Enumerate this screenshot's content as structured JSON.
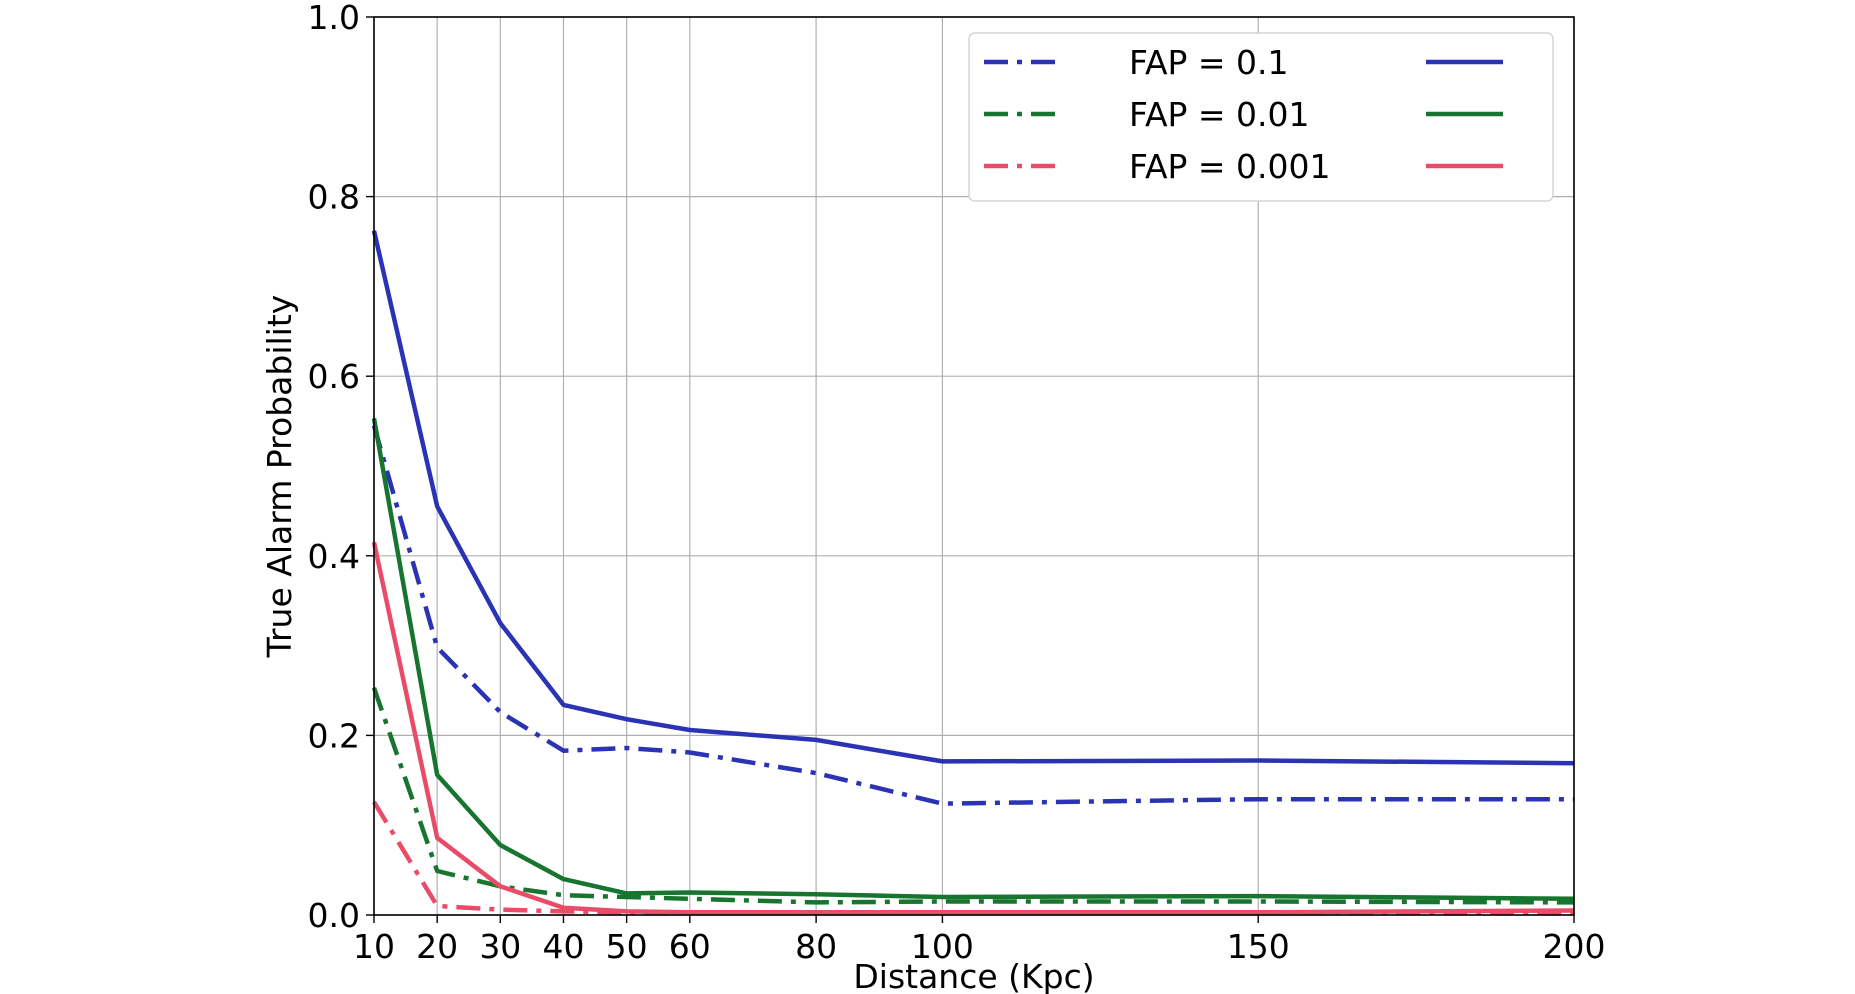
{
  "chart_data": {
    "type": "line",
    "xlabel": "Distance (Kpc)",
    "ylabel": "True Alarm Probability",
    "xlim": [
      10,
      200
    ],
    "ylim": [
      0.0,
      1.0
    ],
    "x_ticks": [
      10,
      20,
      30,
      40,
      50,
      60,
      80,
      100,
      150,
      200
    ],
    "y_ticks": [
      0.0,
      0.2,
      0.4,
      0.6,
      0.8,
      1.0
    ],
    "y_tick_labels": [
      "0.0",
      "0.2",
      "0.4",
      "0.6",
      "0.8",
      "1.0"
    ],
    "grid": true,
    "legend_position": "top-right",
    "x": [
      10,
      20,
      30,
      40,
      50,
      60,
      80,
      100,
      150,
      200
    ],
    "legend": [
      {
        "label": "FAP = 0.1",
        "color": "#2b33b5"
      },
      {
        "label": "FAP = 0.01",
        "color": "#17752f"
      },
      {
        "label": "FAP = 0.001",
        "color": "#e84c68"
      }
    ],
    "series": [
      {
        "color": "#2b33b5",
        "style": "dashdot",
        "values": [
          0.545,
          0.298,
          0.226,
          0.183,
          0.186,
          0.181,
          0.158,
          0.124,
          0.129,
          0.129
        ]
      },
      {
        "color": "#2b33b5",
        "style": "solid",
        "values": [
          0.762,
          0.455,
          0.325,
          0.234,
          0.218,
          0.206,
          0.195,
          0.171,
          0.172,
          0.169
        ]
      },
      {
        "color": "#17752f",
        "style": "dashdot",
        "values": [
          0.253,
          0.049,
          0.032,
          0.022,
          0.02,
          0.018,
          0.014,
          0.015,
          0.015,
          0.014
        ]
      },
      {
        "color": "#17752f",
        "style": "solid",
        "values": [
          0.553,
          0.156,
          0.078,
          0.04,
          0.024,
          0.025,
          0.023,
          0.02,
          0.021,
          0.018
        ]
      },
      {
        "color": "#e84c68",
        "style": "dashdot",
        "values": [
          0.126,
          0.01,
          0.006,
          0.004,
          0.003,
          0.002,
          0.002,
          0.002,
          0.002,
          0.002
        ]
      },
      {
        "color": "#e84c68",
        "style": "solid",
        "values": [
          0.415,
          0.086,
          0.032,
          0.008,
          0.004,
          0.003,
          0.003,
          0.003,
          0.003,
          0.005
        ]
      }
    ]
  }
}
